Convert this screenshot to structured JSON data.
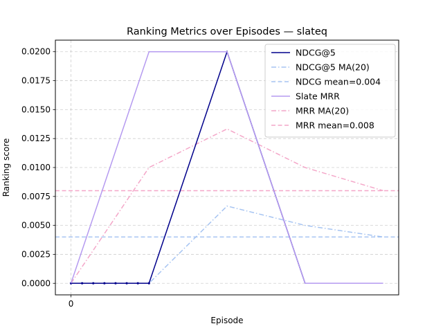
{
  "chart_data": {
    "type": "line",
    "title": "Ranking Metrics over Episodes — slateq",
    "xlabel": "Episode",
    "ylabel": "Ranking score",
    "x": [
      0,
      1,
      2,
      3,
      4
    ],
    "xticks": [
      0
    ],
    "xtick_labels": [
      "0"
    ],
    "xlim": [
      -0.2,
      4.2
    ],
    "ylim": [
      -0.001,
      0.021
    ],
    "yticks": [
      0.0,
      0.0025,
      0.005,
      0.0075,
      0.01,
      0.0125,
      0.015,
      0.0175,
      0.02
    ],
    "ytick_labels": [
      "0.0000",
      "0.0025",
      "0.0050",
      "0.0075",
      "0.0100",
      "0.0125",
      "0.0150",
      "0.0175",
      "0.0200"
    ],
    "grid": true,
    "legend_position": "top-right",
    "series": [
      {
        "name": "NDCG@5",
        "values": [
          0.0,
          0.0,
          0.02,
          0.0,
          0.0
        ],
        "color": "#00008b",
        "dash": "solid",
        "markers": true
      },
      {
        "name": "NDCG@5 MA(20)",
        "values": [
          0.0,
          0.0,
          0.00667,
          0.005,
          0.004
        ],
        "color": "#a6c4f2",
        "dash": "dashdot",
        "markers": false
      },
      {
        "name": "NDCG mean=0.004",
        "values": [
          0.004,
          0.004,
          0.004,
          0.004,
          0.004
        ],
        "color": "#a6c4f2",
        "dash": "dashed",
        "markers": false,
        "hline": true
      },
      {
        "name": "Slate MRR",
        "values": [
          0.0,
          0.02,
          0.02,
          0.0,
          0.0
        ],
        "color": "#b59af0",
        "dash": "solid",
        "markers": false
      },
      {
        "name": "MRR MA(20)",
        "values": [
          0.0,
          0.01,
          0.01333,
          0.01,
          0.008
        ],
        "color": "#f4a6c8",
        "dash": "dashdot",
        "markers": false
      },
      {
        "name": "MRR mean=0.008",
        "values": [
          0.008,
          0.008,
          0.008,
          0.008,
          0.008
        ],
        "color": "#f4a6c8",
        "dash": "dashed",
        "markers": false,
        "hline": true
      }
    ]
  }
}
